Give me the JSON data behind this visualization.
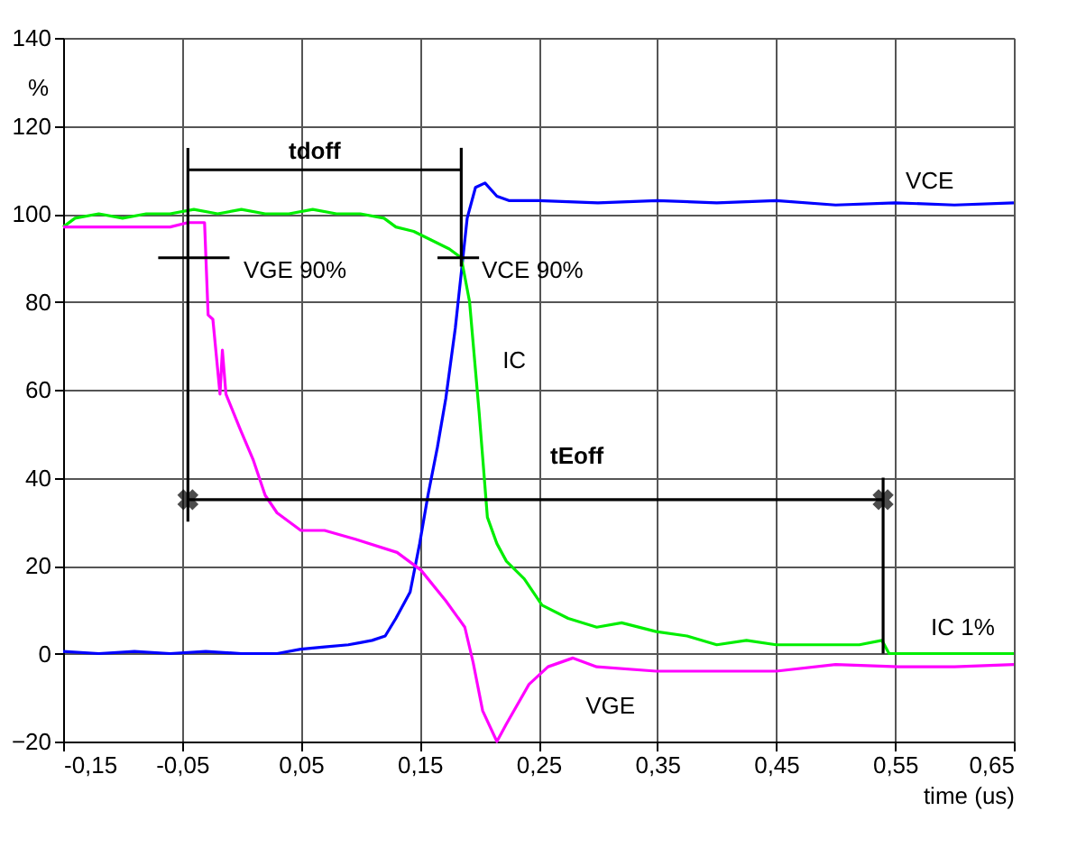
{
  "chart_data": {
    "type": "line",
    "xlabel": "time (us)",
    "ylabel": "%",
    "xlim": [
      -0.15,
      0.65
    ],
    "xticks": [
      {
        "value": -0.15,
        "label": "-0,15"
      },
      {
        "value": -0.05,
        "label": "-0,05"
      },
      {
        "value": 0.05,
        "label": "0,05"
      },
      {
        "value": 0.15,
        "label": "0,15"
      },
      {
        "value": 0.25,
        "label": "0,25"
      },
      {
        "value": 0.35,
        "label": "0,35"
      },
      {
        "value": 0.45,
        "label": "0,45"
      },
      {
        "value": 0.55,
        "label": "0,55"
      },
      {
        "value": 0.65,
        "label": "0,65"
      }
    ],
    "ylim": [
      -20,
      140
    ],
    "yticks": [
      -20,
      0,
      20,
      40,
      60,
      80,
      100,
      120,
      140
    ],
    "grid": true,
    "marker": "none",
    "line_style": "solid",
    "series": [
      {
        "name": "VCE",
        "color": "#0000ff",
        "x": [
          -0.15,
          -0.12,
          -0.09,
          -0.06,
          -0.03,
          0.0,
          0.03,
          0.05,
          0.07,
          0.09,
          0.1,
          0.11,
          0.121,
          0.13,
          0.142,
          0.15,
          0.157,
          0.165,
          0.172,
          0.18,
          0.186,
          0.19,
          0.197,
          0.205,
          0.215,
          0.225,
          0.25,
          0.3,
          0.35,
          0.4,
          0.45,
          0.5,
          0.55,
          0.6,
          0.65
        ],
        "values": [
          0.5,
          0,
          0.5,
          0,
          0.5,
          0,
          0,
          1,
          1.5,
          2,
          2.5,
          3,
          4,
          8,
          14,
          25,
          36,
          47,
          58,
          74,
          89,
          99,
          106,
          107,
          104,
          103,
          103,
          102.5,
          103,
          102.5,
          103,
          102,
          102.5,
          102,
          102.5
        ]
      },
      {
        "name": "IC",
        "color": "#00ee00",
        "x": [
          -0.15,
          -0.14,
          -0.12,
          -0.1,
          -0.08,
          -0.06,
          -0.04,
          -0.02,
          0.0,
          0.02,
          0.04,
          0.06,
          0.08,
          0.1,
          0.12,
          0.13,
          0.145,
          0.16,
          0.175,
          0.185,
          0.192,
          0.2,
          0.207,
          0.215,
          0.223,
          0.238,
          0.253,
          0.275,
          0.299,
          0.32,
          0.349,
          0.375,
          0.4,
          0.425,
          0.45,
          0.475,
          0.5,
          0.52,
          0.539,
          0.545,
          0.65
        ],
        "values": [
          97,
          99,
          100,
          99,
          100,
          100,
          101,
          100,
          101,
          100,
          100,
          101,
          100,
          100,
          99,
          97,
          96,
          94,
          92,
          90,
          80,
          55,
          31,
          25,
          21,
          17,
          11,
          8,
          6,
          7,
          5,
          4,
          2,
          3,
          2,
          2,
          2,
          2,
          3,
          0,
          0
        ]
      },
      {
        "name": "VGE",
        "color": "#ff00ff",
        "x": [
          -0.15,
          -0.12,
          -0.09,
          -0.06,
          -0.045,
          -0.035,
          -0.031,
          -0.028,
          -0.024,
          -0.018,
          -0.016,
          -0.013,
          -0.01,
          -0.001,
          0.01,
          0.02,
          0.03,
          0.05,
          0.07,
          0.096,
          0.131,
          0.151,
          0.172,
          0.188,
          0.195,
          0.203,
          0.215,
          0.223,
          0.242,
          0.258,
          0.279,
          0.299,
          0.349,
          0.4,
          0.45,
          0.5,
          0.553,
          0.6,
          0.65
        ],
        "values": [
          97,
          97,
          97,
          97,
          98,
          98,
          98,
          77,
          76,
          59,
          69,
          59,
          57,
          51,
          44,
          36,
          32,
          28,
          28,
          26,
          23,
          19,
          12,
          6,
          -2,
          -13,
          -20,
          -16,
          -7,
          -3,
          -1,
          -3,
          -4,
          -4,
          -4,
          -2.5,
          -3,
          -3,
          -2.5
        ]
      },
      {
        "color": "#000000",
        "x": [
          -0.045,
          0.185
        ],
        "values": [
          110,
          110
        ]
      },
      {
        "color": "#000000",
        "x": [
          -0.045,
          0.54
        ],
        "values": [
          35,
          35
        ],
        "marker": "cross"
      },
      {
        "color": "#000000",
        "x": [
          -0.045,
          -0.045
        ],
        "values": [
          115,
          30
        ]
      },
      {
        "color": "#000000",
        "x": [
          0.185,
          0.185
        ],
        "values": [
          115,
          88
        ]
      },
      {
        "color": "#000000",
        "x": [
          0.54,
          0.54
        ],
        "values": [
          40,
          0
        ]
      },
      {
        "color": "#000000",
        "x": [
          -0.07,
          -0.01
        ],
        "values": [
          90,
          90
        ]
      },
      {
        "color": "#000000",
        "x": [
          0.165,
          0.2
        ],
        "values": [
          90,
          90
        ]
      }
    ],
    "annotations": [
      "tdoff",
      "tEoff",
      "VGE 90%",
      "VCE 90%",
      "IC 1%"
    ]
  }
}
